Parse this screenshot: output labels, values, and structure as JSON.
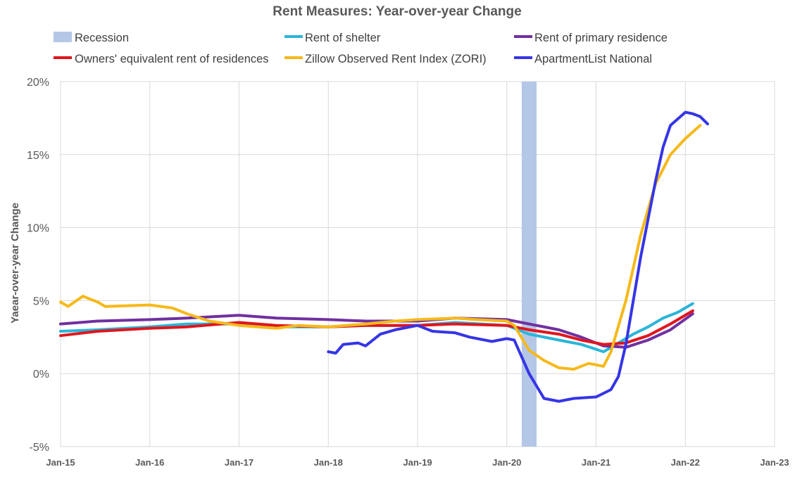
{
  "chart_data": {
    "type": "line",
    "title": "Rent Measures: Year-over-year Change",
    "ylabel": "Yaear-over-year Change",
    "xlabel": "",
    "ylim": [
      -5,
      20
    ],
    "yticks": [
      -5,
      0,
      5,
      10,
      15,
      20
    ],
    "ytick_labels": [
      "-5%",
      "0%",
      "5%",
      "10%",
      "15%",
      "20%"
    ],
    "xlim": [
      "2015-01",
      "2023-01"
    ],
    "xticks": [
      "2015-01",
      "2016-01",
      "2017-01",
      "2018-01",
      "2019-01",
      "2020-01",
      "2021-01",
      "2022-01",
      "2023-01"
    ],
    "xtick_labels": [
      "Jan-15",
      "Jan-16",
      "Jan-17",
      "Jan-18",
      "Jan-19",
      "Jan-20",
      "Jan-21",
      "Jan-22",
      "Jan-23"
    ],
    "grid": "vertical and horizontal",
    "legend_position": "top",
    "recession": {
      "label": "Recession",
      "start": "2020-03",
      "end": "2020-04",
      "color": "#b4c7e7"
    },
    "series": [
      {
        "name": "Rent of shelter",
        "color": "#2bb5d8",
        "points": [
          [
            "2015-01",
            2.9
          ],
          [
            "2015-06",
            3.0
          ],
          [
            "2016-01",
            3.2
          ],
          [
            "2016-06",
            3.4
          ],
          [
            "2017-01",
            3.4
          ],
          [
            "2017-06",
            3.2
          ],
          [
            "2018-01",
            3.2
          ],
          [
            "2018-06",
            3.3
          ],
          [
            "2019-01",
            3.3
          ],
          [
            "2019-06",
            3.5
          ],
          [
            "2020-01",
            3.3
          ],
          [
            "2020-04",
            2.7
          ],
          [
            "2020-08",
            2.3
          ],
          [
            "2020-11",
            2.0
          ],
          [
            "2021-02",
            1.5
          ],
          [
            "2021-04",
            2.1
          ],
          [
            "2021-06",
            2.7
          ],
          [
            "2021-08",
            3.2
          ],
          [
            "2021-10",
            3.8
          ],
          [
            "2021-12",
            4.2
          ],
          [
            "2022-02",
            4.8
          ]
        ]
      },
      {
        "name": "Rent of primary residence",
        "color": "#7030a0",
        "points": [
          [
            "2015-01",
            3.4
          ],
          [
            "2015-06",
            3.6
          ],
          [
            "2016-01",
            3.7
          ],
          [
            "2016-06",
            3.8
          ],
          [
            "2017-01",
            4.0
          ],
          [
            "2017-06",
            3.8
          ],
          [
            "2018-01",
            3.7
          ],
          [
            "2018-06",
            3.6
          ],
          [
            "2019-01",
            3.6
          ],
          [
            "2019-06",
            3.8
          ],
          [
            "2020-01",
            3.7
          ],
          [
            "2020-04",
            3.4
          ],
          [
            "2020-08",
            3.0
          ],
          [
            "2020-11",
            2.5
          ],
          [
            "2021-02",
            1.9
          ],
          [
            "2021-05",
            1.8
          ],
          [
            "2021-08",
            2.3
          ],
          [
            "2021-11",
            3.0
          ],
          [
            "2022-02",
            4.1
          ]
        ]
      },
      {
        "name": "Owners' equivalent rent of residences",
        "color": "#e0161e",
        "points": [
          [
            "2015-01",
            2.6
          ],
          [
            "2015-06",
            2.9
          ],
          [
            "2016-01",
            3.1
          ],
          [
            "2016-06",
            3.2
          ],
          [
            "2017-01",
            3.5
          ],
          [
            "2017-06",
            3.3
          ],
          [
            "2018-01",
            3.2
          ],
          [
            "2018-06",
            3.3
          ],
          [
            "2019-01",
            3.3
          ],
          [
            "2019-06",
            3.4
          ],
          [
            "2020-01",
            3.3
          ],
          [
            "2020-04",
            3.0
          ],
          [
            "2020-08",
            2.7
          ],
          [
            "2020-11",
            2.3
          ],
          [
            "2021-02",
            2.0
          ],
          [
            "2021-05",
            2.1
          ],
          [
            "2021-08",
            2.6
          ],
          [
            "2021-11",
            3.4
          ],
          [
            "2022-02",
            4.3
          ]
        ]
      },
      {
        "name": "Zillow Observed Rent Index (ZORI)",
        "color": "#f6b91a",
        "points": [
          [
            "2015-01",
            4.9
          ],
          [
            "2015-02",
            4.6
          ],
          [
            "2015-04",
            5.3
          ],
          [
            "2015-06",
            4.9
          ],
          [
            "2015-07",
            4.6
          ],
          [
            "2016-01",
            4.7
          ],
          [
            "2016-04",
            4.5
          ],
          [
            "2016-06",
            4.1
          ],
          [
            "2016-09",
            3.6
          ],
          [
            "2017-01",
            3.3
          ],
          [
            "2017-06",
            3.1
          ],
          [
            "2017-09",
            3.3
          ],
          [
            "2018-01",
            3.2
          ],
          [
            "2018-06",
            3.4
          ],
          [
            "2018-10",
            3.6
          ],
          [
            "2019-01",
            3.7
          ],
          [
            "2019-06",
            3.8
          ],
          [
            "2019-09",
            3.7
          ],
          [
            "2020-01",
            3.6
          ],
          [
            "2020-02",
            3.3
          ],
          [
            "2020-04",
            1.6
          ],
          [
            "2020-06",
            0.9
          ],
          [
            "2020-08",
            0.4
          ],
          [
            "2020-10",
            0.3
          ],
          [
            "2020-12",
            0.7
          ],
          [
            "2021-02",
            0.5
          ],
          [
            "2021-03",
            1.5
          ],
          [
            "2021-05",
            5.0
          ],
          [
            "2021-07",
            9.5
          ],
          [
            "2021-09",
            13.0
          ],
          [
            "2021-11",
            15.0
          ],
          [
            "2022-01",
            16.1
          ],
          [
            "2022-03",
            17.0
          ]
        ]
      },
      {
        "name": "ApartmentList National",
        "color": "#3535e6",
        "points": [
          [
            "2018-01",
            1.5
          ],
          [
            "2018-02",
            1.4
          ],
          [
            "2018-03",
            2.0
          ],
          [
            "2018-05",
            2.1
          ],
          [
            "2018-06",
            1.9
          ],
          [
            "2018-08",
            2.7
          ],
          [
            "2018-10",
            3.0
          ],
          [
            "2019-01",
            3.3
          ],
          [
            "2019-03",
            2.9
          ],
          [
            "2019-06",
            2.8
          ],
          [
            "2019-08",
            2.5
          ],
          [
            "2019-11",
            2.2
          ],
          [
            "2020-01",
            2.4
          ],
          [
            "2020-02",
            2.3
          ],
          [
            "2020-04",
            0.0
          ],
          [
            "2020-06",
            -1.7
          ],
          [
            "2020-08",
            -1.9
          ],
          [
            "2020-10",
            -1.7
          ],
          [
            "2021-01",
            -1.6
          ],
          [
            "2021-03",
            -1.1
          ],
          [
            "2021-04",
            -0.2
          ],
          [
            "2021-05",
            2.0
          ],
          [
            "2021-07",
            8.0
          ],
          [
            "2021-09",
            13.2
          ],
          [
            "2021-10",
            15.5
          ],
          [
            "2021-11",
            17.0
          ],
          [
            "2022-01",
            17.9
          ],
          [
            "2022-02",
            17.8
          ],
          [
            "2022-03",
            17.6
          ],
          [
            "2022-04",
            17.1
          ]
        ]
      }
    ]
  }
}
